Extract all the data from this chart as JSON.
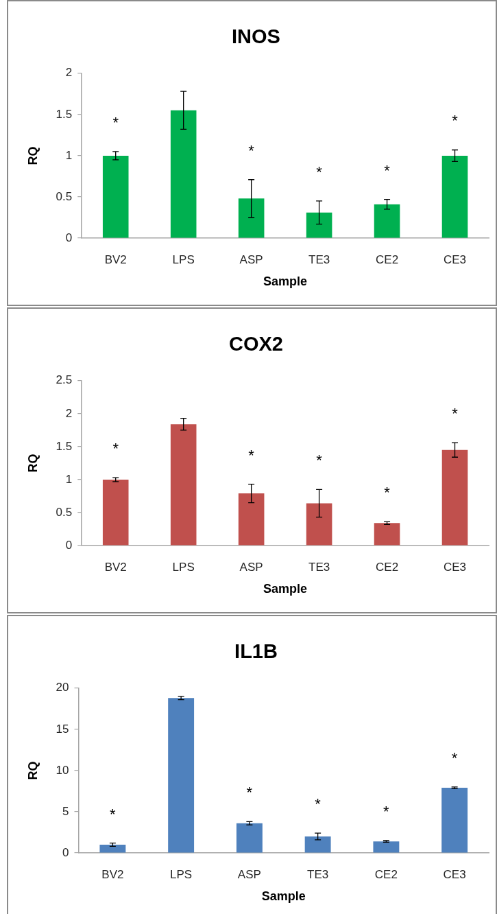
{
  "chart_data": [
    {
      "type": "bar",
      "title": "INOS",
      "xlabel": "Sample",
      "ylabel": "RQ",
      "categories": [
        "BV2",
        "LPS",
        "ASP",
        "TE3",
        "CE2",
        "CE3"
      ],
      "values": [
        1.0,
        1.55,
        0.48,
        0.31,
        0.41,
        1.0
      ],
      "errors": [
        0.05,
        0.23,
        0.23,
        0.14,
        0.06,
        0.07
      ],
      "value_labels": [
        "*",
        null,
        "*",
        "*",
        "*",
        "*"
      ],
      "color": "#00b050",
      "ylim": [
        0,
        2
      ],
      "yticks": [
        0,
        0.5,
        1,
        1.5,
        2
      ],
      "grid": false
    },
    {
      "type": "bar",
      "title": "COX2",
      "xlabel": "Sample",
      "ylabel": "RQ",
      "categories": [
        "BV2",
        "LPS",
        "ASP",
        "TE3",
        "CE2",
        "CE3"
      ],
      "values": [
        1.0,
        1.84,
        0.79,
        0.64,
        0.34,
        1.45
      ],
      "errors": [
        0.03,
        0.09,
        0.14,
        0.21,
        0.02,
        0.11
      ],
      "value_labels": [
        "*",
        null,
        "*",
        "*",
        "*",
        "*"
      ],
      "color": "#c0504d",
      "ylim": [
        0,
        2.5
      ],
      "yticks": [
        0,
        0.5,
        1,
        1.5,
        2,
        2.5
      ],
      "grid": false
    },
    {
      "type": "bar",
      "title": "IL1B",
      "xlabel": "Sample",
      "ylabel": "RQ",
      "categories": [
        "BV2",
        "LPS",
        "ASP",
        "TE3",
        "CE2",
        "CE3"
      ],
      "values": [
        1.0,
        18.8,
        3.6,
        2.0,
        1.4,
        7.9
      ],
      "errors": [
        0.2,
        0.2,
        0.2,
        0.4,
        0.1,
        0.1
      ],
      "value_labels": [
        "*",
        null,
        "*",
        "*",
        "*",
        "*"
      ],
      "color": "#4f81bd",
      "ylim": [
        0,
        20
      ],
      "yticks": [
        0,
        5,
        10,
        15,
        20
      ],
      "grid": false
    }
  ]
}
